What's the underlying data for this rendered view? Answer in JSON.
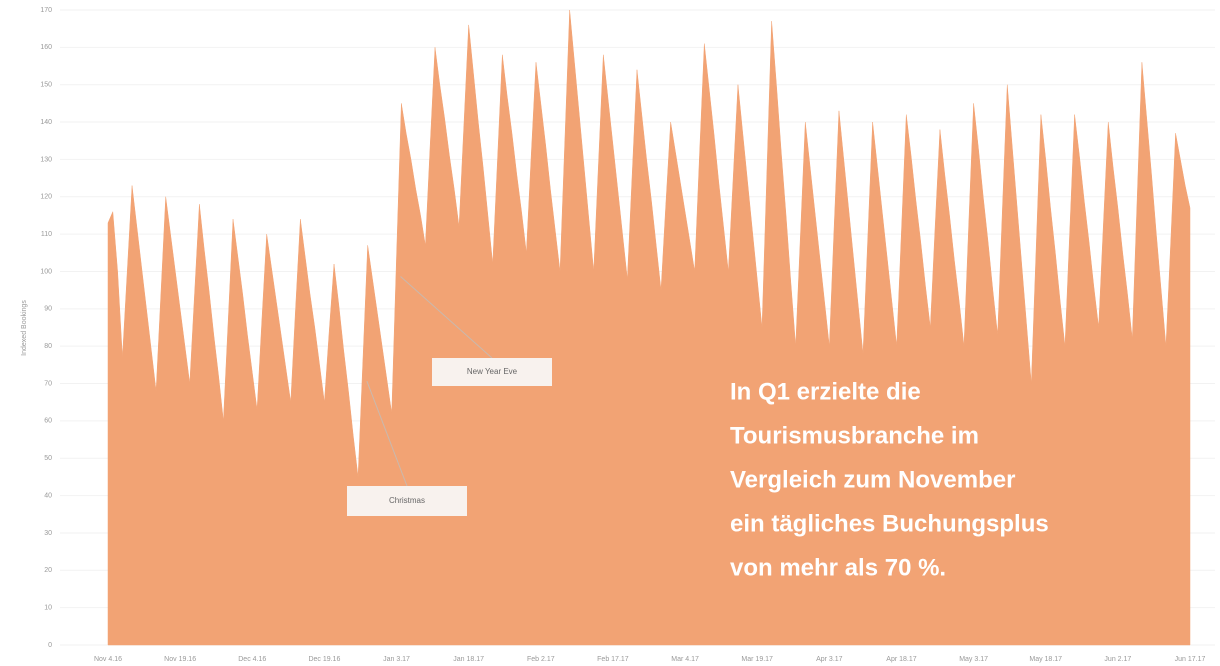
{
  "chart_data": {
    "type": "area",
    "ylabel": "Indexed Bookings",
    "color": "#f2a374",
    "grid": true,
    "ylim": [
      0,
      170
    ],
    "yticks": [
      0,
      10,
      20,
      30,
      40,
      50,
      60,
      70,
      80,
      90,
      100,
      110,
      120,
      130,
      140,
      150,
      160,
      170
    ],
    "categories": [
      "Nov 4.16",
      null,
      null,
      null,
      null,
      null,
      null,
      null,
      null,
      null,
      null,
      null,
      null,
      null,
      null,
      "Nov 19.16",
      null,
      null,
      null,
      null,
      null,
      null,
      null,
      null,
      null,
      null,
      null,
      null,
      null,
      null,
      "Dec 4.16",
      null,
      null,
      null,
      null,
      null,
      null,
      null,
      null,
      null,
      null,
      null,
      null,
      null,
      null,
      "Dec 19.16",
      null,
      null,
      null,
      null,
      null,
      null,
      null,
      null,
      null,
      null,
      null,
      null,
      null,
      null,
      "Jan 3.17",
      null,
      null,
      null,
      null,
      null,
      null,
      null,
      null,
      null,
      null,
      null,
      null,
      null,
      null,
      "Jan 18.17",
      null,
      null,
      null,
      null,
      null,
      null,
      null,
      null,
      null,
      null,
      null,
      null,
      null,
      null,
      "Feb 2.17",
      null,
      null,
      null,
      null,
      null,
      null,
      null,
      null,
      null,
      null,
      null,
      null,
      null,
      null,
      "Feb 17.17",
      null,
      null,
      null,
      null,
      null,
      null,
      null,
      null,
      null,
      null,
      null,
      null,
      null,
      null,
      "Mar 4.17",
      null,
      null,
      null,
      null,
      null,
      null,
      null,
      null,
      null,
      null,
      null,
      null,
      null,
      null,
      "Mar 19.17",
      null,
      null,
      null,
      null,
      null,
      null,
      null,
      null,
      null,
      null,
      null,
      null,
      null,
      null,
      "Apr 3.17",
      null,
      null,
      null,
      null,
      null,
      null,
      null,
      null,
      null,
      null,
      null,
      null,
      null,
      null,
      "Apr 18.17",
      null,
      null,
      null,
      null,
      null,
      null,
      null,
      null,
      null,
      null,
      null,
      null,
      null,
      null,
      "May 3.17",
      null,
      null,
      null,
      null,
      null,
      null,
      null,
      null,
      null,
      null,
      null,
      null,
      null,
      null,
      "May 18.17",
      null,
      null,
      null,
      null,
      null,
      null,
      null,
      null,
      null,
      null,
      null,
      null,
      null,
      null,
      "Jun 2.17",
      null,
      null,
      null,
      null,
      null,
      null,
      null,
      null,
      null,
      null,
      null,
      null,
      null,
      null,
      "Jun 17.17"
    ],
    "values": [
      113,
      116,
      100,
      77,
      100,
      123,
      112,
      101,
      90,
      79,
      68,
      94,
      120,
      110,
      100,
      90,
      80,
      70,
      94,
      118,
      106,
      95,
      83,
      72,
      60,
      87,
      114,
      104,
      94,
      83,
      73,
      63,
      87,
      110,
      101,
      92,
      83,
      74,
      65,
      90,
      114,
      104,
      94,
      85,
      75,
      65,
      84,
      102,
      91,
      79,
      68,
      56,
      45,
      76,
      107,
      98,
      89,
      80,
      71,
      62,
      104,
      145,
      137,
      130,
      122,
      115,
      107,
      134,
      160,
      150,
      141,
      131,
      122,
      112,
      139,
      166,
      153,
      140,
      128,
      115,
      102,
      130,
      158,
      147,
      137,
      126,
      116,
      105,
      131,
      156,
      145,
      134,
      122,
      111,
      100,
      135,
      170,
      156,
      142,
      128,
      114,
      100,
      129,
      158,
      146,
      134,
      122,
      110,
      98,
      126,
      154,
      142,
      130,
      119,
      107,
      95,
      118,
      140,
      132,
      124,
      116,
      108,
      100,
      131,
      161,
      149,
      137,
      124,
      112,
      100,
      125,
      150,
      137,
      124,
      111,
      98,
      85,
      126,
      167,
      150,
      132,
      115,
      97,
      80,
      110,
      140,
      128,
      116,
      104,
      92,
      80,
      112,
      143,
      130,
      117,
      104,
      91,
      78,
      109,
      140,
      128,
      116,
      104,
      92,
      80,
      111,
      142,
      131,
      119,
      108,
      96,
      85,
      112,
      138,
      126,
      115,
      103,
      92,
      80,
      113,
      145,
      133,
      120,
      108,
      95,
      83,
      117,
      150,
      134,
      118,
      102,
      86,
      70,
      106,
      142,
      130,
      117,
      105,
      92,
      80,
      111,
      142,
      131,
      119,
      108,
      96,
      85,
      113,
      140,
      128,
      117,
      105,
      94,
      82,
      119,
      156,
      141,
      126,
      110,
      95,
      80,
      108,
      137,
      130,
      123,
      117
    ],
    "annotations": [
      {
        "text": "New Year Eve",
        "index": 60
      },
      {
        "text": "Christmas",
        "index": 53
      }
    ],
    "callout": [
      "In Q1 erzielte die",
      "Tourismusbranche im",
      "Vergleich zum November",
      "ein tägliches Buchungsplus",
      "von mehr als 70 %."
    ]
  }
}
